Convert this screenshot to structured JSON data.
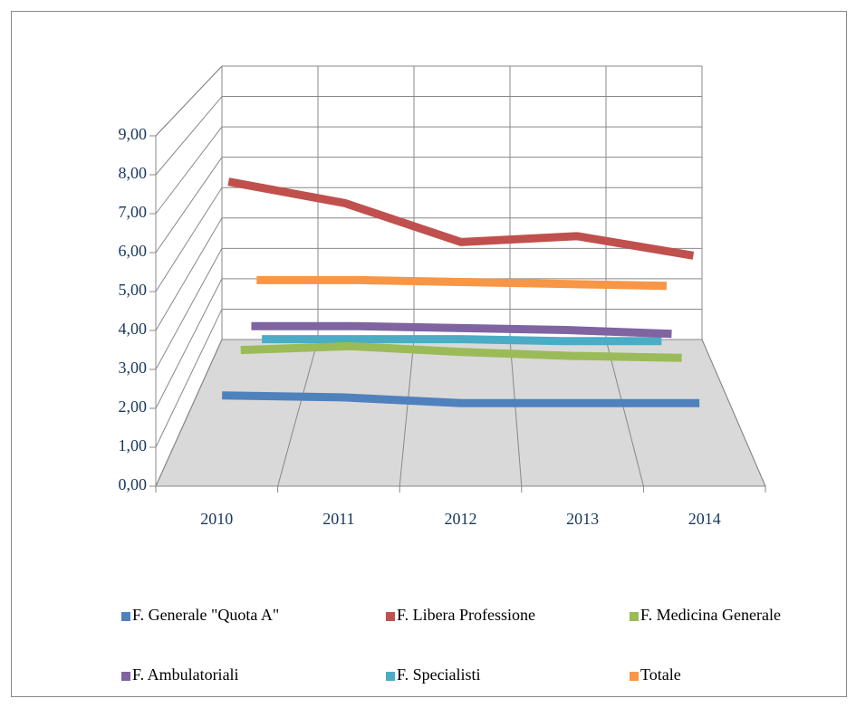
{
  "chart_data": {
    "type": "line",
    "categories": [
      "2010",
      "2011",
      "2012",
      "2013",
      "2014"
    ],
    "series": [
      {
        "name": "F. Generale \"Quota A\"",
        "color": "#4f81bd",
        "values": [
          2.3,
          2.25,
          2.1,
          2.1,
          2.1
        ]
      },
      {
        "name": "F. Libera Professione",
        "color": "#c0504d",
        "values": [
          7.75,
          7.2,
          6.2,
          6.35,
          5.85
        ]
      },
      {
        "name": "F. Medicina Generale",
        "color": "#9bbb59",
        "values": [
          3.35,
          3.45,
          3.3,
          3.2,
          3.15
        ]
      },
      {
        "name": "F. Ambulatoriali",
        "color": "#8064a2",
        "values": [
          3.9,
          3.9,
          3.85,
          3.8,
          3.7
        ]
      },
      {
        "name": "F. Specialisti",
        "color": "#4bacc6",
        "values": [
          3.5,
          3.5,
          3.5,
          3.45,
          3.45
        ]
      },
      {
        "name": "Totale",
        "color": "#f79646",
        "values": [
          5.05,
          5.05,
          5.0,
          4.95,
          4.9
        ]
      }
    ],
    "ylim": [
      0,
      9
    ],
    "yticks": [
      {
        "value": 0,
        "label": "0,00"
      },
      {
        "value": 1,
        "label": "1,00"
      },
      {
        "value": 2,
        "label": "2,00"
      },
      {
        "value": 3,
        "label": "3,00"
      },
      {
        "value": 4,
        "label": "4,00"
      },
      {
        "value": 5,
        "label": "5,00"
      },
      {
        "value": 6,
        "label": "6,00"
      },
      {
        "value": 7,
        "label": "7,00"
      },
      {
        "value": 8,
        "label": "8,00"
      },
      {
        "value": 9,
        "label": "9,00"
      }
    ],
    "grid": true,
    "legend": "bottom"
  }
}
